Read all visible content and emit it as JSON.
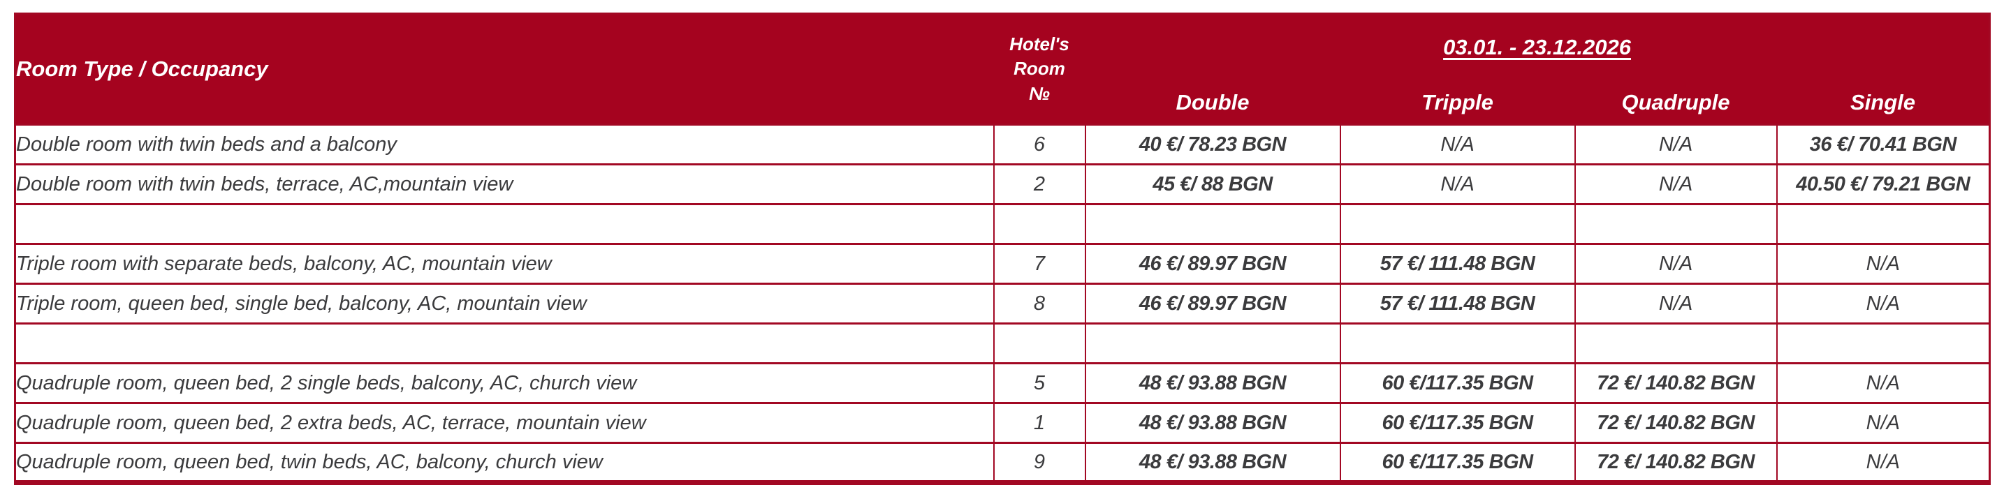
{
  "colors": {
    "header_bg": "#A5031F",
    "grid_line": "#A20823",
    "body_text": "#3B3B3D",
    "header_text": "#FFFFFF"
  },
  "table": {
    "header": {
      "room_type_label": "Room Type / Occupancy",
      "room_no_lines": [
        "Hotel's",
        "Room",
        "№"
      ],
      "date_range": "03.01. - 23.12.2026",
      "price_columns": [
        "Double",
        "Tripple",
        "Quadruple",
        "Single"
      ]
    },
    "rows": [
      {
        "type": "data",
        "description": "Double room with twin beds and a balcony",
        "room_no": "6",
        "prices": [
          "40 €/ 78.23 BGN",
          "N/A",
          "N/A",
          "36 €/ 70.41 BGN"
        ]
      },
      {
        "type": "data",
        "description": "Double room with twin beds, terrace, AC,mountain view",
        "room_no": "2",
        "prices": [
          "45 €/ 88 BGN",
          "N/A",
          "N/A",
          "40.50 €/ 79.21 BGN"
        ]
      },
      {
        "type": "empty",
        "description": "",
        "room_no": "",
        "prices": [
          "",
          "",
          "",
          ""
        ]
      },
      {
        "type": "data",
        "description": "Triple room with separate beds, balcony, AC, mountain view",
        "room_no": "7",
        "prices": [
          "46 €/ 89.97 BGN",
          "57 €/ 111.48 BGN",
          "N/A",
          "N/A"
        ]
      },
      {
        "type": "data",
        "description": "Triple room, queen bed, single bed, balcony, AC, mountain view",
        "room_no": "8",
        "prices": [
          "46 €/ 89.97 BGN",
          "57 €/ 111.48 BGN",
          "N/A",
          "N/A"
        ]
      },
      {
        "type": "empty",
        "description": "",
        "room_no": "",
        "prices": [
          "",
          "",
          "",
          ""
        ]
      },
      {
        "type": "data",
        "description": "Quadruple room, queen bed, 2 single beds, balcony, AC, church view",
        "room_no": "5",
        "prices": [
          "48 €/ 93.88 BGN",
          "60 €/117.35 BGN",
          "72 €/ 140.82 BGN",
          "N/A"
        ]
      },
      {
        "type": "data",
        "description": "Quadruple room, queen bed, 2 extra beds, AC, terrace, mountain view",
        "room_no": "1",
        "prices": [
          "48 €/ 93.88 BGN",
          "60 €/117.35 BGN",
          "72 €/ 140.82 BGN",
          "N/A"
        ]
      },
      {
        "type": "data",
        "description": "Quadruple room, queen bed, twin beds, AC, balcony, church view",
        "room_no": "9",
        "prices": [
          "48 €/ 93.88 BGN",
          "60 €/117.35 BGN",
          "72 €/ 140.82 BGN",
          "N/A"
        ]
      }
    ]
  }
}
